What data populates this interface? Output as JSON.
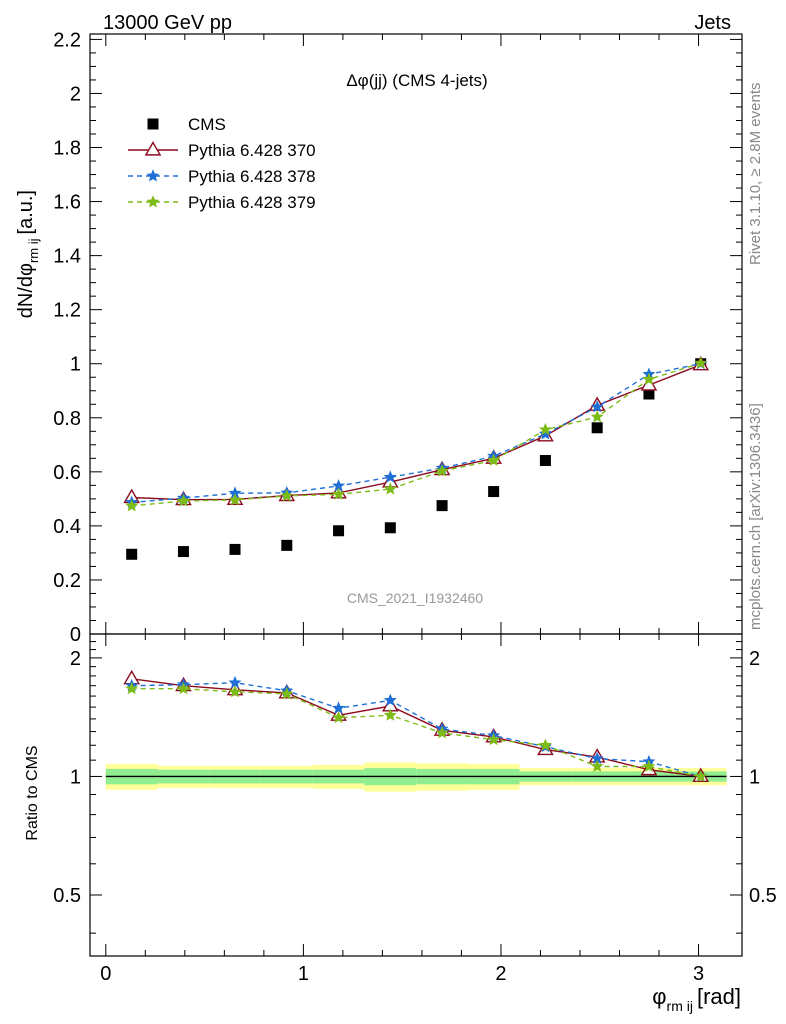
{
  "header": {
    "left": "13000 GeV pp",
    "right": "Jets"
  },
  "side_labels": {
    "rivet": "Rivet 3.1.10, ≥ 2.8M events",
    "mcplots": "mcplots.cern.ch [arXiv:1306.3436]"
  },
  "colors": {
    "cms": "#000000",
    "p370": "#8b0a1e",
    "p378": "#1f6fd6",
    "p379": "#7dbb16",
    "band_inner": "#90ee90",
    "band_outer": "#ffff99"
  },
  "chart_data": [
    {
      "type": "scatter",
      "panel": "main",
      "title": "Δφ(jj) (CMS 4-jets)",
      "watermark": "CMS_2021_I1932460",
      "ylabel_main": "dN/dφ",
      "ylabel_sub": "rm ij",
      "ylabel_unit": "[a.u.]",
      "xlim": [
        -0.08,
        3.22
      ],
      "ylim": [
        0,
        2.22
      ],
      "yticks": [
        0,
        0.2,
        0.4,
        0.6,
        0.8,
        1,
        1.2,
        1.4,
        1.6,
        1.8,
        2,
        2.2
      ],
      "ytick_labels": [
        "0",
        "0.2",
        "0.4",
        "0.6",
        "0.8",
        "1",
        "1.2",
        "1.4",
        "1.6",
        "1.8",
        "2",
        "2.2"
      ],
      "x": [
        0.131,
        0.393,
        0.654,
        0.916,
        1.178,
        1.44,
        1.702,
        1.963,
        2.225,
        2.487,
        2.749,
        3.011
      ],
      "series": [
        {
          "name": "CMS",
          "values": [
            0.295,
            0.305,
            0.313,
            0.328,
            0.382,
            0.393,
            0.475,
            0.527,
            0.642,
            0.763,
            0.888,
            1.0
          ]
        },
        {
          "name": "Pythia 6.428 370",
          "values": [
            0.505,
            0.497,
            0.498,
            0.512,
            0.522,
            0.562,
            0.608,
            0.65,
            0.733,
            0.846,
            0.921,
            0.996
          ]
        },
        {
          "name": "Pythia 6.428 378",
          "values": [
            0.487,
            0.503,
            0.521,
            0.522,
            0.548,
            0.58,
            0.614,
            0.658,
            0.74,
            0.84,
            0.961,
            1.0
          ]
        },
        {
          "name": "Pythia 6.428 379",
          "values": [
            0.474,
            0.492,
            0.496,
            0.511,
            0.517,
            0.536,
            0.603,
            0.642,
            0.756,
            0.803,
            0.942,
            1.002
          ]
        }
      ],
      "legend": "top-left"
    },
    {
      "type": "line",
      "panel": "ratio",
      "ylabel": "Ratio to CMS",
      "xlabel_main": "φ",
      "xlabel_sub": "rm ij",
      "xlabel_unit": "[rad]",
      "xlim": [
        -0.08,
        3.22
      ],
      "ylim": [
        0.35,
        2.3
      ],
      "log_y": true,
      "yticks": [
        0.5,
        1,
        2
      ],
      "ytick_labels": [
        "0.5",
        "1",
        "2"
      ],
      "xticks": [
        0,
        1,
        2,
        3
      ],
      "xtick_labels": [
        "0",
        "1",
        "2",
        "3"
      ],
      "x": [
        0.131,
        0.393,
        0.654,
        0.916,
        1.178,
        1.44,
        1.702,
        1.963,
        2.225,
        2.487,
        2.749,
        3.011
      ],
      "bin_edges": [
        0,
        0.262,
        0.524,
        0.785,
        1.047,
        1.309,
        1.571,
        1.833,
        2.094,
        2.356,
        2.618,
        2.88,
        3.142
      ],
      "band_inner_halfwidth": [
        0.045,
        0.04,
        0.04,
        0.04,
        0.04,
        0.05,
        0.045,
        0.045,
        0.03,
        0.03,
        0.03,
        0.03
      ],
      "band_outer_halfwidth": [
        0.075,
        0.065,
        0.065,
        0.065,
        0.07,
        0.085,
        0.08,
        0.075,
        0.05,
        0.05,
        0.05,
        0.05
      ],
      "series": [
        {
          "name": "Pythia 6.428 370",
          "values": [
            1.77,
            1.7,
            1.66,
            1.63,
            1.43,
            1.51,
            1.31,
            1.26,
            1.17,
            1.12,
            1.04,
            1.0
          ]
        },
        {
          "name": "Pythia 6.428 378",
          "values": [
            1.7,
            1.71,
            1.73,
            1.65,
            1.49,
            1.56,
            1.32,
            1.27,
            1.19,
            1.11,
            1.09,
            1.0
          ]
        },
        {
          "name": "Pythia 6.428 379",
          "values": [
            1.67,
            1.67,
            1.64,
            1.62,
            1.41,
            1.43,
            1.29,
            1.24,
            1.2,
            1.06,
            1.06,
            1.0
          ]
        }
      ]
    }
  ]
}
